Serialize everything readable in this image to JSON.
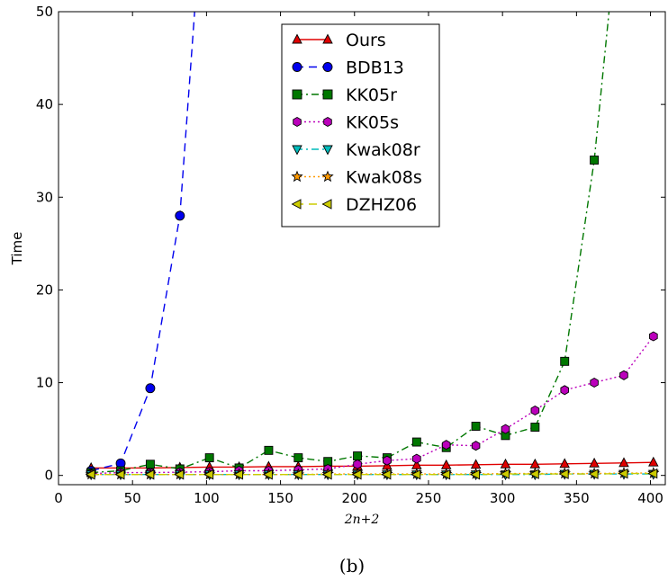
{
  "caption": "(b)",
  "chart_data": {
    "type": "line",
    "title": "",
    "xlabel": "2n+2",
    "ylabel": "Time",
    "xlim": [
      0,
      410
    ],
    "ylim": [
      -1,
      50
    ],
    "xticks": [
      0,
      50,
      100,
      150,
      200,
      250,
      300,
      350,
      400
    ],
    "yticks": [
      0,
      10,
      20,
      30,
      40,
      50
    ],
    "grid": false,
    "legend_position": "top-center",
    "series": [
      {
        "name": "Ours",
        "color": "#e00000",
        "marker": "triangle-up",
        "dash": "",
        "x": [
          22,
          42,
          62,
          82,
          102,
          122,
          142,
          162,
          182,
          202,
          222,
          242,
          262,
          282,
          302,
          322,
          342,
          362,
          382,
          402
        ],
        "y": [
          0.8,
          0.8,
          0.8,
          0.85,
          0.9,
          0.9,
          0.95,
          0.95,
          1.0,
          1.0,
          1.05,
          1.1,
          1.1,
          1.15,
          1.2,
          1.2,
          1.25,
          1.3,
          1.35,
          1.4
        ]
      },
      {
        "name": "BDB13",
        "color": "#0000ee",
        "marker": "circle",
        "dash": "9,6",
        "x": [
          22,
          42,
          62,
          82,
          92
        ],
        "y": [
          0.5,
          1.3,
          9.4,
          28,
          50
        ]
      },
      {
        "name": "KK05r",
        "color": "#007700",
        "marker": "square",
        "dash": "8,4,2,4",
        "x": [
          22,
          42,
          62,
          82,
          102,
          122,
          142,
          162,
          182,
          202,
          222,
          242,
          262,
          282,
          302,
          322,
          342,
          362,
          372
        ],
        "y": [
          0.3,
          0.5,
          1.2,
          0.7,
          1.9,
          0.8,
          2.7,
          1.9,
          1.5,
          2.1,
          1.9,
          3.6,
          3.0,
          5.3,
          4.3,
          5.2,
          12.3,
          34,
          50
        ]
      },
      {
        "name": "KK05s",
        "color": "#bb00bb",
        "marker": "hexagon",
        "dash": "2,3",
        "x": [
          22,
          42,
          62,
          82,
          102,
          122,
          142,
          162,
          182,
          202,
          222,
          242,
          262,
          282,
          302,
          322,
          342,
          362,
          382,
          402
        ],
        "y": [
          0.2,
          0.3,
          0.3,
          0.35,
          0.4,
          0.5,
          0.5,
          0.6,
          0.7,
          1.2,
          1.6,
          1.8,
          3.3,
          3.2,
          5.0,
          7.0,
          9.2,
          10.0,
          10.8,
          15.0
        ]
      },
      {
        "name": "Kwak08r",
        "color": "#00bbbb",
        "marker": "triangle-down",
        "dash": "8,4,2,4",
        "x": [
          22,
          42,
          62,
          82,
          102,
          122,
          142,
          162,
          182,
          202,
          222,
          242,
          262,
          282,
          302,
          322,
          342,
          362,
          382,
          402
        ],
        "y": [
          0.1,
          0.1,
          0.1,
          0.1,
          0.1,
          0.1,
          0.1,
          0.1,
          0.1,
          0.1,
          0.1,
          0.1,
          0.1,
          0.1,
          0.1,
          0.1,
          0.15,
          0.15,
          0.15,
          0.15
        ]
      },
      {
        "name": "Kwak08s",
        "color": "#ff9900",
        "marker": "star",
        "dash": "2,3",
        "x": [
          22,
          42,
          62,
          82,
          102,
          122,
          142,
          162,
          182,
          202,
          222,
          242,
          262,
          282,
          302,
          322,
          342,
          362,
          382,
          402
        ],
        "y": [
          0.1,
          0.1,
          0.1,
          0.1,
          0.1,
          0.1,
          0.1,
          0.1,
          0.15,
          0.15,
          0.15,
          0.15,
          0.15,
          0.15,
          0.2,
          0.2,
          0.2,
          0.2,
          0.25,
          0.25
        ]
      },
      {
        "name": "DZHZ06",
        "color": "#cccc00",
        "marker": "triangle-left",
        "dash": "9,6",
        "x": [
          22,
          42,
          62,
          82,
          102,
          122,
          142,
          162,
          182,
          202,
          222,
          242,
          262,
          282,
          302,
          322,
          342,
          362,
          382,
          402
        ],
        "y": [
          0.1,
          0.1,
          0.1,
          0.1,
          0.1,
          0.1,
          0.1,
          0.1,
          0.1,
          0.1,
          0.1,
          0.1,
          0.1,
          0.1,
          0.15,
          0.15,
          0.15,
          0.15,
          0.2,
          0.2
        ]
      }
    ]
  }
}
